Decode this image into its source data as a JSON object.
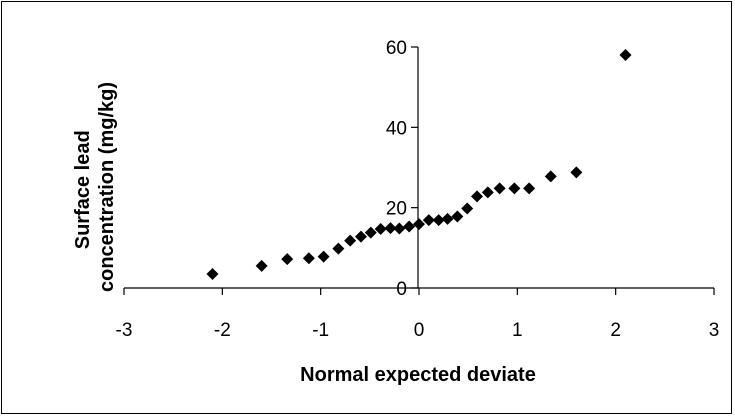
{
  "chart_data": {
    "type": "scatter",
    "title": "",
    "xlabel": "Normal expected deviate",
    "ylabel": [
      "Surface lead",
      "concentration (mg/kg)"
    ],
    "xlim": [
      -3,
      3
    ],
    "ylim": [
      0,
      60
    ],
    "xticks": [
      -3,
      -2,
      -1,
      0,
      1,
      2,
      3
    ],
    "yticks": [
      0,
      20,
      40,
      60
    ],
    "xtick_labels": [
      "-3",
      "-2",
      "-1",
      "0",
      "1",
      "2",
      "3"
    ],
    "ytick_labels": [
      "0",
      "20",
      "40",
      "60"
    ],
    "grid": false,
    "legend": "none",
    "marker": "diamond",
    "marker_color": "#000000",
    "series": [
      {
        "points": [
          [
            -2.1,
            3.5
          ],
          [
            -1.6,
            5.5
          ],
          [
            -1.34,
            7.2
          ],
          [
            -1.12,
            7.4
          ],
          [
            -0.97,
            7.8
          ],
          [
            -0.82,
            9.8
          ],
          [
            -0.7,
            11.8
          ],
          [
            -0.59,
            12.8
          ],
          [
            -0.49,
            13.8
          ],
          [
            -0.39,
            14.7
          ],
          [
            -0.29,
            14.9
          ],
          [
            -0.2,
            14.8
          ],
          [
            -0.1,
            15.3
          ],
          [
            0.0,
            15.9
          ],
          [
            0.1,
            16.9
          ],
          [
            0.2,
            16.9
          ],
          [
            0.29,
            17.2
          ],
          [
            0.39,
            17.8
          ],
          [
            0.49,
            19.8
          ],
          [
            0.59,
            22.8
          ],
          [
            0.7,
            23.8
          ],
          [
            0.82,
            24.8
          ],
          [
            0.97,
            24.8
          ],
          [
            1.12,
            24.8
          ],
          [
            1.34,
            27.8
          ],
          [
            1.6,
            28.8
          ],
          [
            2.1,
            58.0
          ]
        ]
      }
    ]
  }
}
